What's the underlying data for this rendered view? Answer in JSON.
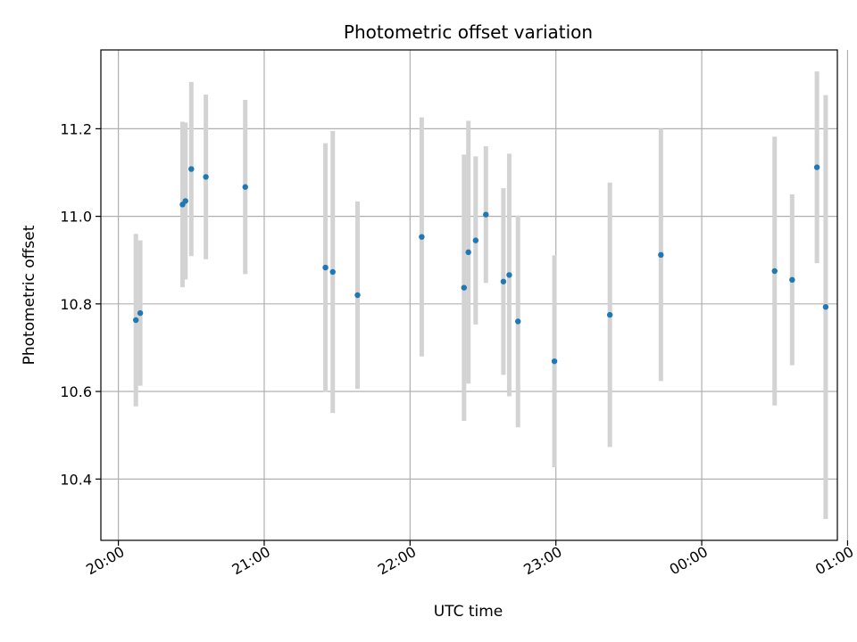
{
  "chart_data": {
    "type": "scatter",
    "title": "Photometric offset variation",
    "xlabel": "UTC time",
    "ylabel": "Photometric offset",
    "x_axis": {
      "unit": "hours since 20:00 UTC",
      "range": [
        -0.12,
        4.93
      ],
      "ticks": [
        {
          "value": 0,
          "label": "20:00"
        },
        {
          "value": 1,
          "label": "21:00"
        },
        {
          "value": 2,
          "label": "22:00"
        },
        {
          "value": 3,
          "label": "23:00"
        },
        {
          "value": 4,
          "label": "00:00"
        },
        {
          "value": 5,
          "label": "01:00"
        }
      ]
    },
    "y_axis": {
      "range": [
        10.26,
        11.38
      ],
      "ticks": [
        {
          "value": 10.4,
          "label": "10.4"
        },
        {
          "value": 10.6,
          "label": "10.6"
        },
        {
          "value": 10.8,
          "label": "10.8"
        },
        {
          "value": 11.0,
          "label": "11.0"
        },
        {
          "value": 11.2,
          "label": "11.2"
        }
      ]
    },
    "grid": true,
    "colors": {
      "point": "#1f77b4",
      "errorbar": "#d3d3d3",
      "grid": "#b0b0b0"
    },
    "points": [
      {
        "time": "20:07",
        "x": 0.12,
        "y": 10.763,
        "yerr": 0.197
      },
      {
        "time": "20:09",
        "x": 0.15,
        "y": 10.779,
        "yerr": 0.166
      },
      {
        "time": "20:26",
        "x": 0.44,
        "y": 11.027,
        "yerr": 0.189
      },
      {
        "time": "20:27",
        "x": 0.46,
        "y": 11.035,
        "yerr": 0.179
      },
      {
        "time": "20:30",
        "x": 0.5,
        "y": 11.108,
        "yerr": 0.199
      },
      {
        "time": "20:36",
        "x": 0.6,
        "y": 11.09,
        "yerr": 0.188
      },
      {
        "time": "20:52",
        "x": 0.87,
        "y": 11.067,
        "yerr": 0.199
      },
      {
        "time": "21:25",
        "x": 1.42,
        "y": 10.883,
        "yerr": 0.284
      },
      {
        "time": "21:28",
        "x": 1.47,
        "y": 10.873,
        "yerr": 0.322
      },
      {
        "time": "21:38",
        "x": 1.64,
        "y": 10.82,
        "yerr": 0.214
      },
      {
        "time": "22:04",
        "x": 2.08,
        "y": 10.953,
        "yerr": 0.273
      },
      {
        "time": "22:22",
        "x": 2.37,
        "y": 10.837,
        "yerr": 0.304
      },
      {
        "time": "22:24",
        "x": 2.4,
        "y": 10.918,
        "yerr": 0.3
      },
      {
        "time": "22:27",
        "x": 2.45,
        "y": 10.945,
        "yerr": 0.192
      },
      {
        "time": "22:31",
        "x": 2.52,
        "y": 11.004,
        "yerr": 0.156
      },
      {
        "time": "22:38",
        "x": 2.64,
        "y": 10.851,
        "yerr": 0.213
      },
      {
        "time": "22:41",
        "x": 2.68,
        "y": 10.866,
        "yerr": 0.277
      },
      {
        "time": "22:45",
        "x": 2.74,
        "y": 10.76,
        "yerr": 0.242
      },
      {
        "time": "22:59",
        "x": 2.99,
        "y": 10.669,
        "yerr": 0.242
      },
      {
        "time": "23:22",
        "x": 3.37,
        "y": 10.775,
        "yerr": 0.302
      },
      {
        "time": "23:43",
        "x": 3.72,
        "y": 10.912,
        "yerr": 0.288
      },
      {
        "time": "00:30",
        "x": 4.5,
        "y": 10.875,
        "yerr": 0.307
      },
      {
        "time": "00:37",
        "x": 4.62,
        "y": 10.855,
        "yerr": 0.195
      },
      {
        "time": "00:47",
        "x": 4.79,
        "y": 11.112,
        "yerr": 0.219
      },
      {
        "time": "00:51",
        "x": 4.85,
        "y": 10.793,
        "yerr": 0.484
      }
    ]
  }
}
